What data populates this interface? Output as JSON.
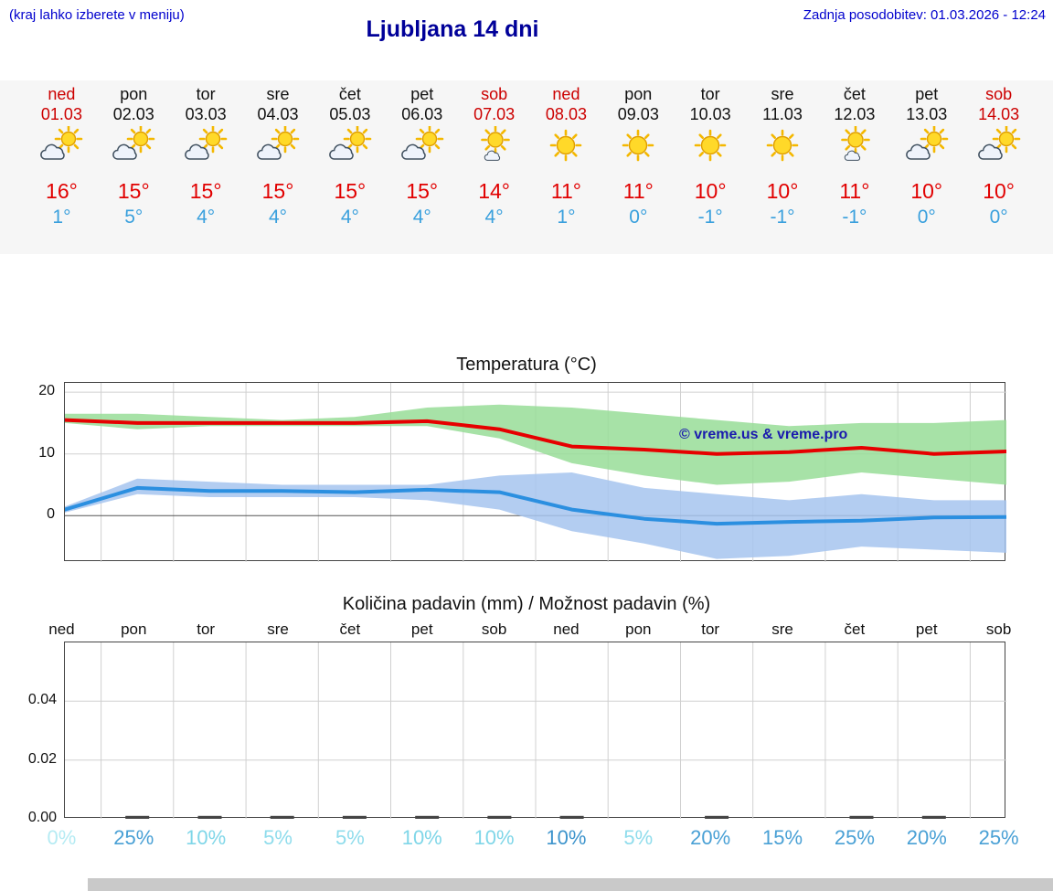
{
  "colors": {
    "weekend": "#cc0000",
    "weekday": "#111111",
    "high_temp": "#e10000",
    "low_temp": "#3aa0dd",
    "grid": "#d0d0d0",
    "zero_line": "#555555",
    "bar": "#444444"
  },
  "header": {
    "note": "(kraj lahko izberete v meniju)",
    "title": "Ljubljana 14 dni",
    "updated": "Zadnja posodobitev: 01.03.2026 - 12:24"
  },
  "forecast": {
    "days": [
      {
        "name": "ned",
        "date": "01.03",
        "weekend": true,
        "icon": "partly-cloudy",
        "high": "16°",
        "low": "1°"
      },
      {
        "name": "pon",
        "date": "02.03",
        "weekend": false,
        "icon": "partly-cloudy",
        "high": "15°",
        "low": "5°"
      },
      {
        "name": "tor",
        "date": "03.03",
        "weekend": false,
        "icon": "partly-cloudy",
        "high": "15°",
        "low": "4°"
      },
      {
        "name": "sre",
        "date": "04.03",
        "weekend": false,
        "icon": "partly-cloudy",
        "high": "15°",
        "low": "4°"
      },
      {
        "name": "čet",
        "date": "05.03",
        "weekend": false,
        "icon": "partly-cloudy",
        "high": "15°",
        "low": "4°"
      },
      {
        "name": "pet",
        "date": "06.03",
        "weekend": false,
        "icon": "partly-cloudy",
        "high": "15°",
        "low": "4°"
      },
      {
        "name": "sob",
        "date": "07.03",
        "weekend": true,
        "icon": "mostly-sunny",
        "high": "14°",
        "low": "4°"
      },
      {
        "name": "ned",
        "date": "08.03",
        "weekend": true,
        "icon": "sunny",
        "high": "11°",
        "low": "1°"
      },
      {
        "name": "pon",
        "date": "09.03",
        "weekend": false,
        "icon": "sunny",
        "high": "11°",
        "low": "0°"
      },
      {
        "name": "tor",
        "date": "10.03",
        "weekend": false,
        "icon": "sunny",
        "high": "10°",
        "low": "-1°"
      },
      {
        "name": "sre",
        "date": "11.03",
        "weekend": false,
        "icon": "sunny",
        "high": "10°",
        "low": "-1°"
      },
      {
        "name": "čet",
        "date": "12.03",
        "weekend": false,
        "icon": "mostly-sunny",
        "high": "11°",
        "low": "-1°"
      },
      {
        "name": "pet",
        "date": "13.03",
        "weekend": false,
        "icon": "partly-cloudy",
        "high": "10°",
        "low": "0°"
      },
      {
        "name": "sob",
        "date": "14.03",
        "weekend": true,
        "icon": "partly-cloudy",
        "high": "10°",
        "low": "0°"
      }
    ]
  },
  "chart_data": [
    {
      "type": "line",
      "title": "Temperatura (°C)",
      "x": [
        "ned",
        "pon",
        "tor",
        "sre",
        "čet",
        "pet",
        "sob",
        "ned",
        "pon",
        "tor",
        "sre",
        "čet",
        "pet",
        "sob"
      ],
      "ylim": [
        -7.5,
        21.5
      ],
      "yticks": [
        0,
        10,
        20
      ],
      "ytick_labels": [
        "0",
        "10",
        "20"
      ],
      "grid": true,
      "watermark": "© vreme.us & vreme.pro",
      "series": [
        {
          "name": "max-temp",
          "color": "#e60000",
          "values": [
            15.5,
            15,
            15,
            15,
            15,
            15.3,
            14,
            11.2,
            10.7,
            10,
            10.3,
            11,
            10,
            10.4
          ]
        },
        {
          "name": "min-temp",
          "color": "#2b8fe0",
          "values": [
            1,
            4.5,
            4,
            4,
            3.8,
            4.2,
            3.8,
            1,
            -0.5,
            -1.3,
            -1,
            -0.8,
            -0.3,
            -0.2
          ]
        }
      ],
      "bands": [
        {
          "name": "max-range",
          "color": "#98dd98",
          "upper": [
            16.5,
            16.5,
            16,
            15.5,
            16,
            17.5,
            18,
            17.5,
            16.5,
            15.5,
            14.5,
            15,
            15,
            15.5
          ],
          "lower": [
            15,
            14,
            14.5,
            14.5,
            14.5,
            14.5,
            12.5,
            8.5,
            6.5,
            5,
            5.5,
            7,
            6,
            5
          ]
        },
        {
          "name": "min-range",
          "color": "#a6c4ee",
          "upper": [
            1.5,
            6,
            5.5,
            5,
            5,
            5,
            6.5,
            7,
            4.5,
            3.5,
            2.5,
            3.5,
            2.5,
            2.5
          ],
          "lower": [
            0.5,
            3.5,
            3,
            3,
            3,
            2.5,
            1,
            -2.5,
            -4.5,
            -7,
            -6.5,
            -5,
            -5.5,
            -6
          ]
        }
      ]
    },
    {
      "type": "bar",
      "title": "Količina padavin (mm) / Možnost padavin (%)",
      "categories": [
        "ned",
        "pon",
        "tor",
        "sre",
        "čet",
        "pet",
        "sob",
        "ned",
        "pon",
        "tor",
        "sre",
        "čet",
        "pet",
        "sob"
      ],
      "ylim": [
        0,
        0.06
      ],
      "yticks": [
        0,
        0.02,
        0.04
      ],
      "ytick_labels": [
        "0.00",
        "0.02",
        "0.04"
      ],
      "values_mm": [
        0,
        0.001,
        0.001,
        0.001,
        0.001,
        0.001,
        0.001,
        0.001,
        0,
        0.001,
        0,
        0.001,
        0.001,
        0
      ],
      "probability": [
        {
          "label": "0%",
          "color": "#b5ebf3"
        },
        {
          "label": "25%",
          "color": "#49a0d5"
        },
        {
          "label": "10%",
          "color": "#7fd6e8"
        },
        {
          "label": "5%",
          "color": "#8fdcec"
        },
        {
          "label": "5%",
          "color": "#8fdcec"
        },
        {
          "label": "10%",
          "color": "#7fd6e8"
        },
        {
          "label": "10%",
          "color": "#7fd6e8"
        },
        {
          "label": "10%",
          "color": "#3d94cc"
        },
        {
          "label": "5%",
          "color": "#8fdcec"
        },
        {
          "label": "20%",
          "color": "#49a0d5"
        },
        {
          "label": "15%",
          "color": "#49a0d5"
        },
        {
          "label": "25%",
          "color": "#49a0d5"
        },
        {
          "label": "20%",
          "color": "#49a0d5"
        },
        {
          "label": "25%",
          "color": "#49a0d5"
        }
      ]
    }
  ]
}
